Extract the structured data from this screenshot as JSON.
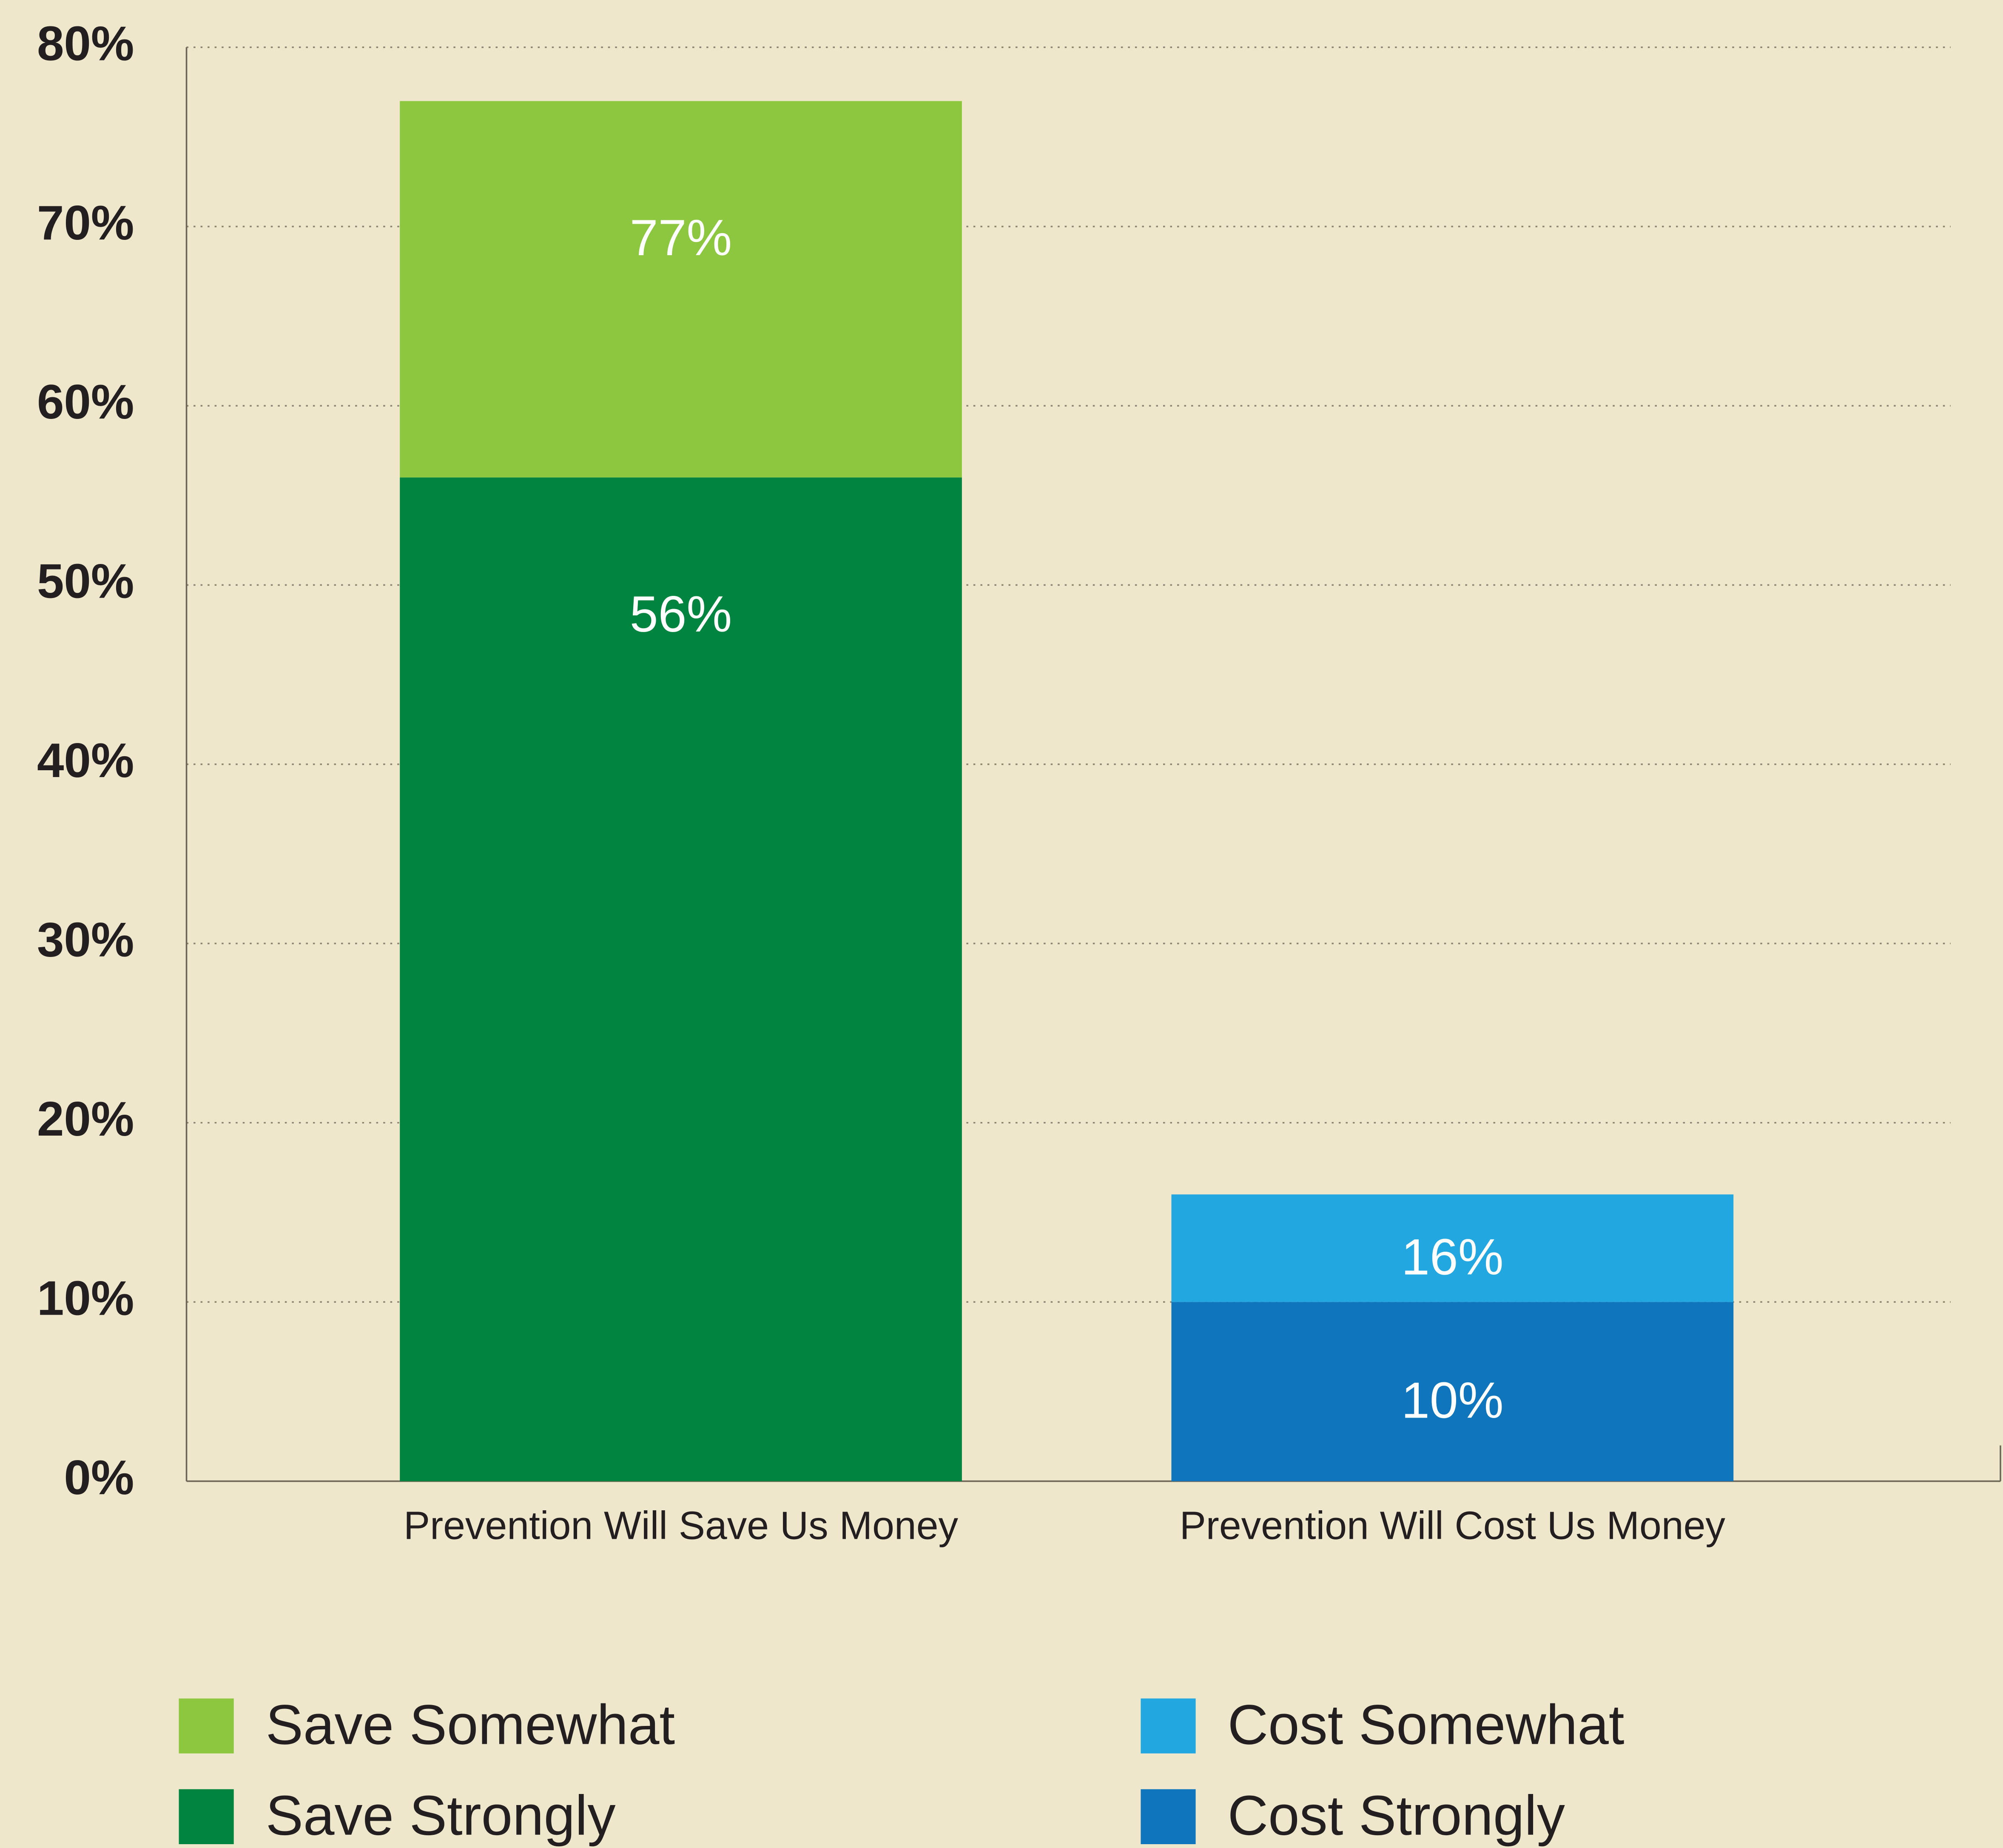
{
  "chart_data": {
    "type": "stacked_bar",
    "categories": [
      "Prevention Will Save Us Money",
      "Prevention Will Cost Us Money"
    ],
    "series": [
      {
        "name": "Save Strongly",
        "color": "#00843f",
        "values": [
          56,
          null
        ],
        "value_labels": [
          "56%",
          null
        ]
      },
      {
        "name": "Save Somewhat",
        "color": "#8dc63f",
        "values": [
          21,
          null
        ]
      },
      {
        "name": "Cost Strongly",
        "color": "#0f75bc",
        "values": [
          null,
          10
        ],
        "value_labels": [
          null,
          "10%"
        ]
      },
      {
        "name": "Cost Somewhat",
        "color": "#22a7e0",
        "values": [
          null,
          6
        ]
      }
    ],
    "totals": [
      77,
      16
    ],
    "total_labels": [
      "77%",
      "16%"
    ],
    "ylim": [
      0,
      80
    ],
    "yticks": [
      {
        "value": 0,
        "label": "0%"
      },
      {
        "value": 10,
        "label": "10%"
      },
      {
        "value": 20,
        "label": "20%"
      },
      {
        "value": 30,
        "label": "30%"
      },
      {
        "value": 40,
        "label": "40%"
      },
      {
        "value": 50,
        "label": "50%"
      },
      {
        "value": 60,
        "label": "60%"
      },
      {
        "value": 70,
        "label": "70%"
      },
      {
        "value": 80,
        "label": "80%"
      }
    ],
    "grid": true
  }
}
